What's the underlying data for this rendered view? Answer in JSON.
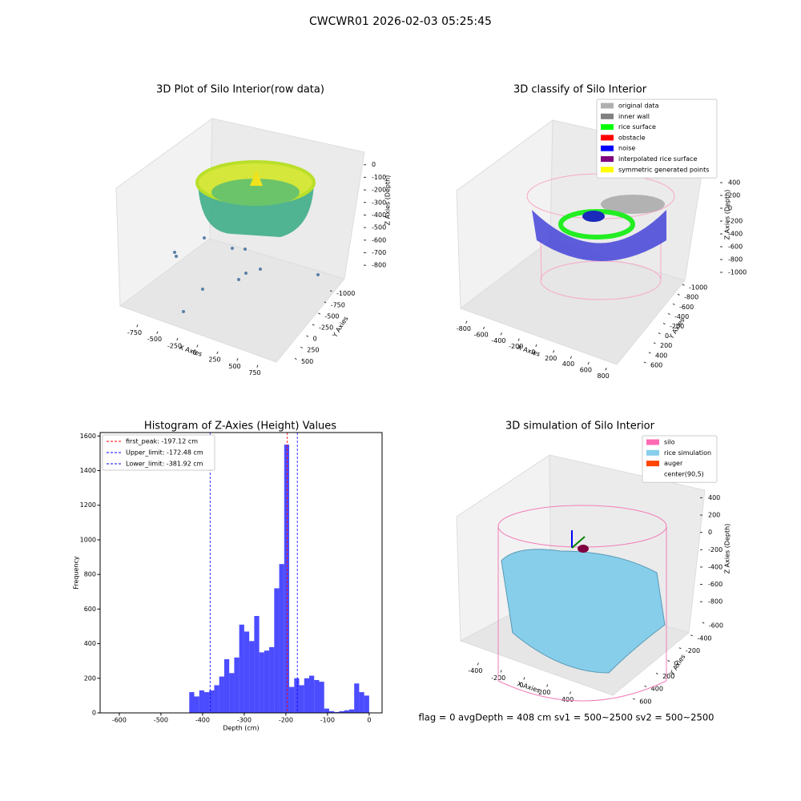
{
  "title": "CWCWR01 2026-02-03 05:25:45",
  "footer": "flag = 0     avgDepth = 408 cm  sv1 = 500~2500  sv2 = 500~2500",
  "chart_data": [
    {
      "type": "scatter3d",
      "title": "3D Plot of Silo Interior(row data)",
      "xlabel": "X Axies",
      "ylabel": "Y Axies",
      "zlabel": "Z Axies (Depth)",
      "xlim": [
        -850,
        850
      ],
      "xticks": [
        -750,
        -500,
        -250,
        0,
        250,
        500,
        750
      ],
      "ylim": [
        -1100,
        600
      ],
      "yticks": [
        500,
        250,
        0,
        -250,
        -500,
        -750,
        -1000
      ],
      "zlim": [
        -850,
        30
      ],
      "zticks": [
        0,
        -100,
        -200,
        -300,
        -400,
        -500,
        -600,
        -700,
        -800
      ]
    },
    {
      "type": "scatter3d",
      "title": "3D classify of Silo Interior",
      "xlabel": "X Axies",
      "ylabel": "Y Axies",
      "zlabel": "Z Axies (Depth)",
      "xlim": [
        -900,
        900
      ],
      "xticks": [
        -800,
        -600,
        -400,
        -200,
        0,
        200,
        400,
        600,
        800
      ],
      "ylim": [
        -1100,
        700
      ],
      "yticks": [
        600,
        400,
        200,
        0,
        -200,
        -400,
        -600,
        -800,
        -1000
      ],
      "zlim": [
        -1100,
        500
      ],
      "zticks": [
        400,
        200,
        0,
        -200,
        -400,
        -600,
        -800,
        -1000
      ],
      "legend": [
        {
          "name": "original data",
          "color": "#b0b0b0"
        },
        {
          "name": "inner wall",
          "color": "#808080"
        },
        {
          "name": "rice surface",
          "color": "#00ff00"
        },
        {
          "name": "obstacle",
          "color": "#ff0000"
        },
        {
          "name": "noise",
          "color": "#0000ff"
        },
        {
          "name": "interpolated rice surface",
          "color": "#800080"
        },
        {
          "name": "symmetric generated points",
          "color": "#ffff00"
        }
      ]
    },
    {
      "type": "histogram",
      "title": "Histogram of Z-Axies (Height) Values",
      "xlabel": "Depth (cm)",
      "ylabel": "Frequency",
      "color": "#0000ff",
      "bins": [
        -432,
        -420,
        -408,
        -396,
        -384,
        -372,
        -360,
        -348,
        -336,
        -324,
        -312,
        -300,
        -288,
        -276,
        -264,
        -252,
        -240,
        -228,
        -216,
        -204,
        -192,
        -180,
        -168,
        -156,
        -144,
        -132,
        -120,
        -108,
        -96,
        -84,
        -72,
        -60,
        -48,
        -36,
        -24,
        -12,
        0
      ],
      "values": [
        120,
        95,
        130,
        120,
        130,
        160,
        210,
        310,
        230,
        320,
        510,
        470,
        415,
        560,
        350,
        360,
        380,
        720,
        860,
        1550,
        150,
        200,
        160,
        200,
        215,
        190,
        180,
        25,
        10,
        5,
        10,
        15,
        20,
        170,
        120,
        100
      ],
      "xlim": [
        -646,
        31
      ],
      "xticks": [
        -600,
        -500,
        -400,
        -300,
        -200,
        -100,
        0
      ],
      "ylim": [
        0,
        1620
      ],
      "yticks": [
        0,
        200,
        400,
        600,
        800,
        1000,
        1200,
        1400,
        1600
      ],
      "lines": [
        {
          "label": "first_peak: -197.12 cm",
          "value": -197.12,
          "color": "#ff0000"
        },
        {
          "label": "Upper_limit: -172.48 cm",
          "value": -172.48,
          "color": "#0000ff"
        },
        {
          "label": "Lower_limit: -381.92 cm",
          "value": -381.92,
          "color": "#0000ff"
        }
      ],
      "legend_loc": "upper left"
    },
    {
      "type": "surface3d",
      "title": "3D simulation of Silo Interior",
      "xlabel": "X Axies",
      "ylabel": "Y Axies",
      "zlabel": "Z Axies (Depth)",
      "xlim": [
        -500,
        500
      ],
      "xticks": [
        -400,
        -200,
        0,
        200,
        400
      ],
      "ylim": [
        -700,
        700
      ],
      "yticks": [
        600,
        400,
        200,
        0,
        -200,
        -400,
        -600
      ],
      "zlim": [
        -900,
        450
      ],
      "zticks": [
        400,
        200,
        0,
        -200,
        -400,
        -600,
        -800
      ],
      "legend": [
        {
          "name": "silo",
          "color": "#ff69b4"
        },
        {
          "name": "rice simulation",
          "color": "#87ceeb"
        },
        {
          "name": "auger",
          "color": "#ff4500"
        },
        {
          "name": "center(90,5)"
        }
      ]
    }
  ]
}
